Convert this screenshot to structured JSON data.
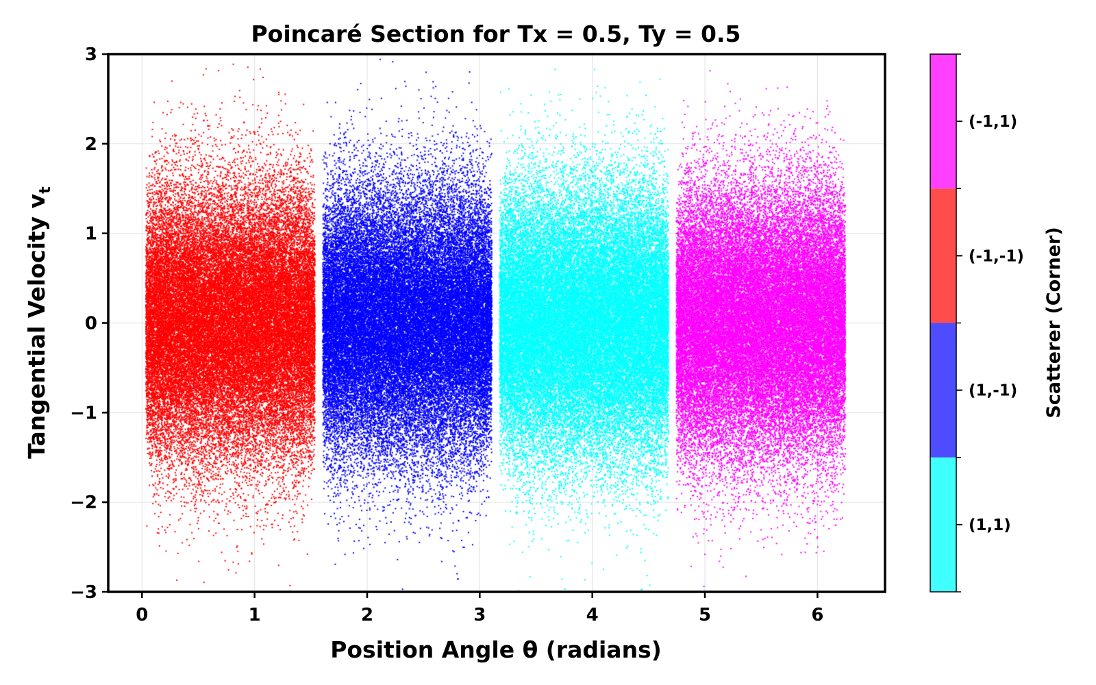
{
  "chart_data": {
    "type": "scatter",
    "title": "Poincaré Section for Tx = 0.5, Ty = 0.5",
    "xlabel": "Position Angle θ (radians)",
    "ylabel": "Tangential Velocity v",
    "ylabel_subscript": "t",
    "xlim": [
      -0.3,
      6.6
    ],
    "ylim": [
      -3,
      3
    ],
    "xticks": [
      0,
      1,
      2,
      3,
      4,
      5,
      6
    ],
    "yticks": [
      -3,
      -2,
      -1,
      0,
      1,
      2,
      3
    ],
    "xtick_labels": [
      "0",
      "1",
      "2",
      "3",
      "4",
      "5",
      "6"
    ],
    "ytick_labels": [
      "−3",
      "−2",
      "−1",
      "0",
      "1",
      "2",
      "3"
    ],
    "grid": true,
    "series": [
      {
        "name": "(-1,-1)",
        "color": "#ff0000",
        "theta_range": [
          0.0,
          1.571
        ],
        "v_mean": 0,
        "v_std": 0.75
      },
      {
        "name": "(1,-1)",
        "color": "#0000ff",
        "theta_range": [
          1.571,
          3.142
        ],
        "v_mean": 0,
        "v_std": 0.75
      },
      {
        "name": "(1,1)",
        "color": "#00ffff",
        "theta_range": [
          3.142,
          4.712
        ],
        "v_mean": 0,
        "v_std": 0.75
      },
      {
        "name": "(-1,1)",
        "color": "#ff00ff",
        "theta_range": [
          4.712,
          6.283
        ],
        "v_mean": 0,
        "v_std": 0.75
      }
    ],
    "colorbar": {
      "title": "Scatterer (Corner)",
      "categories": [
        "(1,1)",
        "(1,-1)",
        "(-1,-1)",
        "(-1,1)"
      ],
      "colors": [
        "#40ffff",
        "#4d4dff",
        "#ff4d4d",
        "#ff40ff"
      ]
    }
  }
}
